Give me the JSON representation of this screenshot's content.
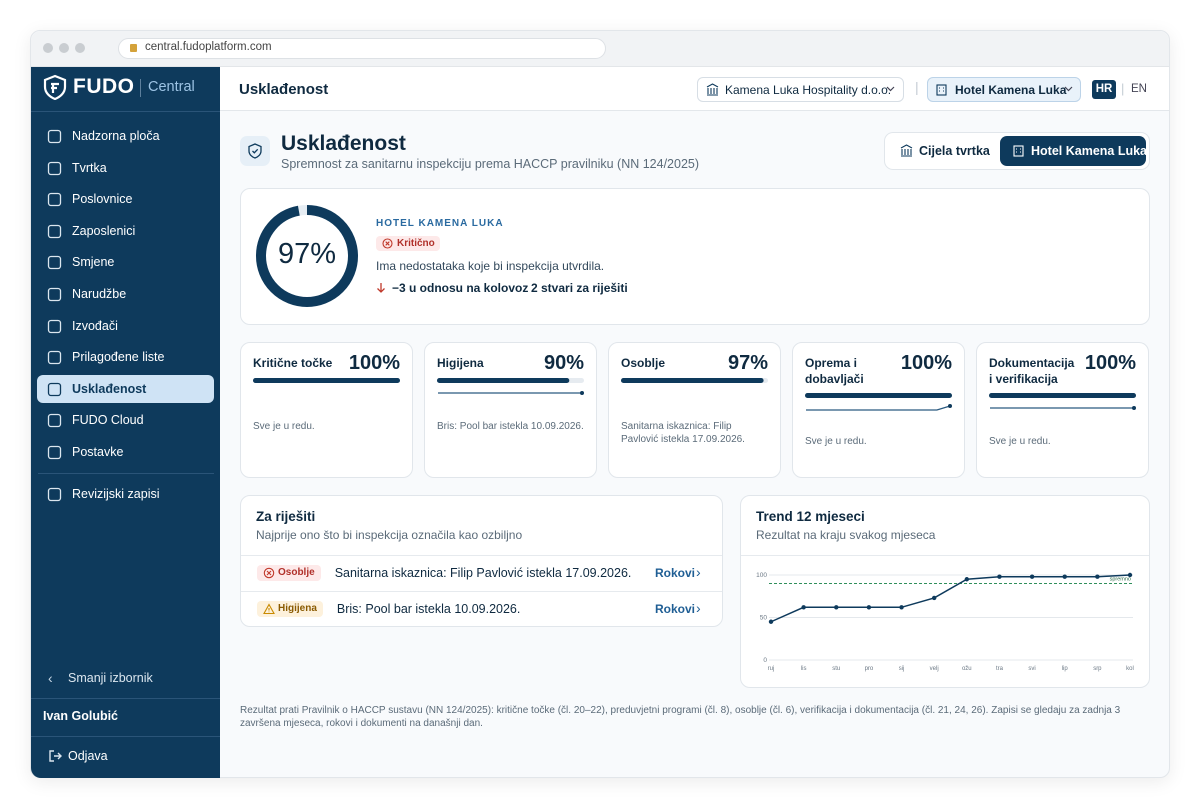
{
  "browser": {
    "url": "central.fudoplatform.com"
  },
  "sidebar": {
    "brand": "FUDO",
    "product": "Central",
    "nav": [
      {
        "label": "Nadzorna ploča"
      },
      {
        "label": "Tvrtka"
      },
      {
        "label": "Poslovnice"
      },
      {
        "label": "Zaposlenici"
      },
      {
        "label": "Smjene"
      },
      {
        "label": "Narudžbe"
      },
      {
        "label": "Izvođači"
      },
      {
        "label": "Prilagođene liste"
      },
      {
        "label": "Usklađenost",
        "active": true
      },
      {
        "label": "FUDO Cloud"
      },
      {
        "label": "Postavke"
      }
    ],
    "nav_secondary": [
      {
        "label": "Revizijski zapisi"
      }
    ],
    "collapse": "Smanji izbornik",
    "user": "Ivan Golubić",
    "logout": "Odjava"
  },
  "topbar": {
    "title": "Usklađenost",
    "company": "Kamena Luka Hospitality d.o.o.",
    "location": "Hotel Kamena Luka",
    "lang_active": "HR",
    "lang_other": "EN"
  },
  "header": {
    "title": "Usklađenost",
    "subtitle": "Spremnost za sanitarnu inspekciju prema HACCP pravilniku (NN 124/2025)",
    "scope_company": "Cijela tvrtka",
    "scope_location": "Hotel Kamena Luka"
  },
  "score": {
    "value": 97,
    "label": "97%",
    "location": "HOTEL KAMENA LUKA",
    "status": "Kritično",
    "description": "Ima nedostataka koje bi inspekcija utvrdila.",
    "delta": "−3 u odnosu na kolovoz",
    "open_items": "2 stvari za riješiti"
  },
  "categories": [
    {
      "name": "Kritične točke",
      "value": 100,
      "label": "100%",
      "note": "Sve je u redu."
    },
    {
      "name": "Higijena",
      "value": 90,
      "label": "90%",
      "note": "Bris: Pool bar istekla 10.09.2026.",
      "sparkline": [
        90,
        90,
        90,
        90,
        90,
        90,
        90,
        90,
        90,
        90,
        90,
        90
      ]
    },
    {
      "name": "Osoblje",
      "value": 97,
      "label": "97%",
      "note": "Sanitarna iskaznica: Filip Pavlović istekla 17.09.2026."
    },
    {
      "name": "Oprema i dobavljači",
      "value": 100,
      "label": "100%",
      "note": "Sve je u redu.",
      "sparkline": [
        97,
        97,
        97,
        97,
        97,
        97,
        97,
        97,
        97,
        97,
        97,
        100
      ]
    },
    {
      "name": "Dokumentacija i verifikacija",
      "value": 100,
      "label": "100%",
      "note": "Sve je u redu.",
      "sparkline": [
        100,
        100,
        100,
        100,
        100,
        100,
        100,
        100,
        100,
        100,
        100,
        100
      ]
    }
  ],
  "todo": {
    "title": "Za riješiti",
    "subtitle": "Najprije ono što bi inspekcija označila kao ozbiljno",
    "rows": [
      {
        "tag": "Osoblje",
        "severity": "critical",
        "text": "Sanitarna iskaznica: Filip Pavlović istekla 17.09.2026.",
        "action": "Rokovi"
      },
      {
        "tag": "Higijena",
        "severity": "warning",
        "text": "Bris: Pool bar istekla 10.09.2026.",
        "action": "Rokovi"
      }
    ]
  },
  "chart_data": {
    "type": "line",
    "title": "Trend 12 mjeseci",
    "subtitle": "Rezultat na kraju svakog mjeseca",
    "categories": [
      "ruj",
      "lis",
      "stu",
      "pro",
      "sij",
      "velj",
      "ožu",
      "tra",
      "svi",
      "lip",
      "srp",
      "kol"
    ],
    "values": [
      45,
      62,
      62,
      62,
      62,
      73,
      95,
      98,
      98,
      98,
      98,
      100
    ],
    "color": "#0e3a5c",
    "ylim": [
      0,
      100
    ],
    "yticks": [
      0,
      50,
      100
    ],
    "grid": true,
    "threshold": 90,
    "threshold_label": "spremno"
  },
  "footnote": "Rezultat prati Pravilnik o HACCP sustavu (NN 124/2025): kritične točke (čl. 20–22), preduvjetni programi (čl. 8), osoblje (čl. 6), verifikacija i dokumentacija (čl. 21, 24, 26). Zapisi se gledaju za zadnja 3 završena mjeseca, rokovi i dokumenti na današnji dan."
}
